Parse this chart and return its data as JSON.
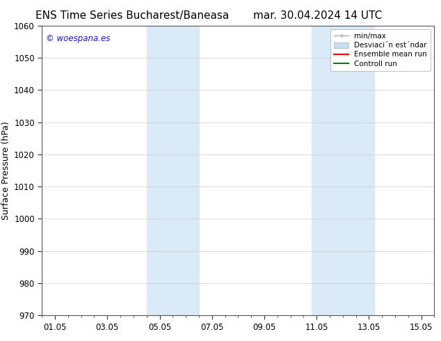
{
  "title_left": "ENS Time Series Bucharest/Baneasa",
  "title_right": "mar. 30.04.2024 14 UTC",
  "ylabel": "Surface Pressure (hPa)",
  "ylim": [
    970,
    1060
  ],
  "yticks": [
    970,
    980,
    990,
    1000,
    1010,
    1020,
    1030,
    1040,
    1050,
    1060
  ],
  "xtick_labels": [
    "01.05",
    "03.05",
    "05.05",
    "07.05",
    "09.05",
    "11.05",
    "13.05",
    "15.05"
  ],
  "xtick_positions": [
    0,
    2,
    4,
    6,
    8,
    10,
    12,
    14
  ],
  "xlim": [
    -0.5,
    14.5
  ],
  "shaded_regions": [
    {
      "xmin": 3.5,
      "xmax": 5.5,
      "color": "#daeaf7"
    },
    {
      "xmin": 9.8,
      "xmax": 12.2,
      "color": "#daeaf7"
    }
  ],
  "watermark_text": "© woespana.es",
  "watermark_color": "#1515cc",
  "legend_label_1": "min/max",
  "legend_label_2": "Desviaci´n est´ndar",
  "legend_label_3": "Ensemble mean run",
  "legend_label_4": "Controll run",
  "bg_color": "#ffffff",
  "grid_color": "#cccccc",
  "title_fontsize": 11,
  "tick_fontsize": 8.5,
  "ylabel_fontsize": 9,
  "legend_fontsize": 7.5
}
